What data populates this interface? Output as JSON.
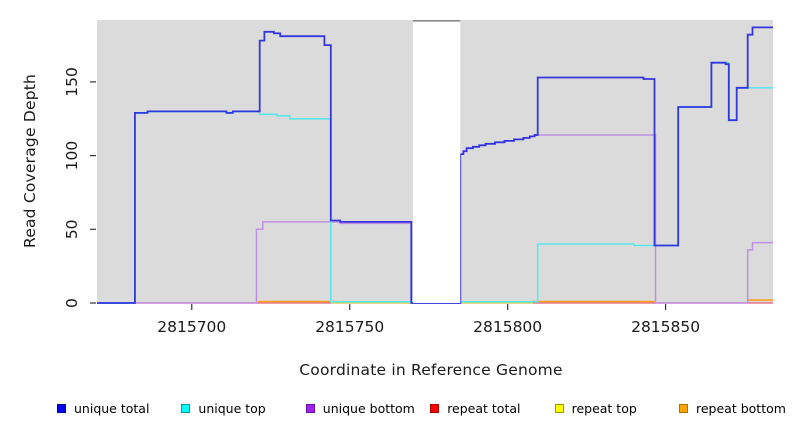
{
  "chart_data": {
    "type": "line",
    "step": true,
    "title": "",
    "xlabel": "Coordinate in Reference Genome",
    "ylabel": "Read Coverage Depth",
    "xlim": [
      2815670,
      2815884
    ],
    "ylim": [
      0,
      192
    ],
    "x_ticks": [
      2815700,
      2815750,
      2815800,
      2815850
    ],
    "y_ticks": [
      0,
      50,
      100,
      150
    ],
    "plot_background": "#DBDBDB",
    "masked_region": {
      "x0": 2815770,
      "x1": 2815785,
      "fill": "#FFFFFF",
      "top_border": "#8C8C8C"
    },
    "grid": false,
    "legend_position": "bottom",
    "series": [
      {
        "name": "repeat total",
        "color": "#E45C74",
        "width": 1.3,
        "segments": [
          [
            [
              2815682,
              0
            ],
            [
              2815884,
              0
            ]
          ]
        ]
      },
      {
        "name": "repeat top",
        "color": "#D6D642",
        "width": 1.3,
        "segments": [
          [
            [
              2815744,
              0
            ],
            [
              2815808,
              0
            ]
          ]
        ]
      },
      {
        "name": "repeat bottom",
        "color": "#FF9E1B",
        "width": 1.6,
        "segments": [
          [
            [
              2815721,
              1
            ],
            [
              2815746,
              1
            ]
          ],
          [
            [
              2815808,
              1
            ],
            [
              2815846.5,
              1
            ]
          ],
          [
            [
              2815876,
              2
            ],
            [
              2815884,
              2
            ]
          ]
        ]
      },
      {
        "name": "unique bottom",
        "color": "#BE8FE4",
        "width": 1.5,
        "segments": [
          [
            [
              2815670,
              0
            ],
            [
              2815720.5,
              50
            ],
            [
              2815722.5,
              55
            ],
            [
              2815747,
              54
            ],
            [
              2815769.5,
              0
            ],
            [
              2815785,
              101
            ],
            [
              2815786,
              103
            ],
            [
              2815787,
              105
            ],
            [
              2815789,
              106
            ],
            [
              2815791,
              107
            ],
            [
              2815793,
              108
            ],
            [
              2815796,
              109
            ],
            [
              2815799,
              110
            ],
            [
              2815802,
              111
            ],
            [
              2815805,
              112
            ],
            [
              2815807,
              113
            ],
            [
              2815808.5,
              114
            ],
            [
              2815846.8,
              0
            ],
            [
              2815876,
              36
            ],
            [
              2815877.5,
              41
            ],
            [
              2815884,
              41
            ]
          ]
        ]
      },
      {
        "name": "unique top",
        "color": "#5CE6EE",
        "width": 1.6,
        "segments": [
          [
            [
              2815670,
              0
            ],
            [
              2815682,
              129
            ],
            [
              2815686,
              130
            ],
            [
              2815711,
              129
            ],
            [
              2815713,
              130
            ],
            [
              2815721.5,
              128
            ],
            [
              2815727,
              127
            ],
            [
              2815731,
              125
            ],
            [
              2815744,
              0.8
            ],
            [
              2815769.5,
              0
            ],
            [
              2815785,
              0.8
            ],
            [
              2815809.5,
              40
            ],
            [
              2815840,
              39
            ],
            [
              2815854,
              133
            ],
            [
              2815864.5,
              163
            ],
            [
              2815870,
              124
            ],
            [
              2815872.5,
              146
            ],
            [
              2815884,
              146
            ]
          ]
        ]
      },
      {
        "name": "unique total",
        "color": "#2828DF",
        "width": 1.8,
        "opacity": 0.92,
        "segments": [
          [
            [
              2815670,
              0
            ],
            [
              2815682,
              129
            ],
            [
              2815686,
              130
            ],
            [
              2815711,
              129
            ],
            [
              2815713,
              130
            ],
            [
              2815721.5,
              178
            ],
            [
              2815723,
              184
            ],
            [
              2815726,
              183
            ],
            [
              2815728,
              181
            ],
            [
              2815742,
              175
            ],
            [
              2815744,
              56
            ],
            [
              2815747,
              55
            ],
            [
              2815769.5,
              0
            ],
            [
              2815785,
              101
            ],
            [
              2815786,
              103
            ],
            [
              2815787,
              105
            ],
            [
              2815789,
              106
            ],
            [
              2815791,
              107
            ],
            [
              2815793,
              108
            ],
            [
              2815796,
              109
            ],
            [
              2815799,
              110
            ],
            [
              2815802,
              111
            ],
            [
              2815805,
              112
            ],
            [
              2815807,
              113
            ],
            [
              2815808.5,
              114
            ],
            [
              2815809.5,
              153
            ],
            [
              2815843,
              152
            ],
            [
              2815846.5,
              39
            ],
            [
              2815854,
              133
            ],
            [
              2815864.5,
              163
            ],
            [
              2815869,
              162
            ],
            [
              2815870,
              124
            ],
            [
              2815872.5,
              146
            ],
            [
              2815876,
              182
            ],
            [
              2815877.5,
              187
            ],
            [
              2815884,
              187
            ]
          ]
        ]
      }
    ],
    "legend": [
      {
        "label": "unique total",
        "color": "#0000EE",
        "border": "#00009A"
      },
      {
        "label": "unique top",
        "color": "#00FFFF",
        "border": "#009C9C"
      },
      {
        "label": "unique bottom",
        "color": "#A020F0",
        "border": "#6E12A8"
      },
      {
        "label": "repeat total",
        "color": "#FF0000",
        "border": "#A80000"
      },
      {
        "label": "repeat top",
        "color": "#FFFF00",
        "border": "#9C9C00"
      },
      {
        "label": "repeat bottom",
        "color": "#FFA500",
        "border": "#B06F00"
      }
    ]
  }
}
